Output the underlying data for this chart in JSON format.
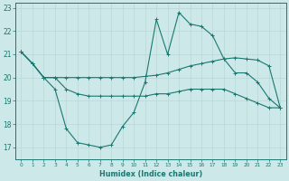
{
  "xlabel": "Humidex (Indice chaleur)",
  "bg_color": "#cde8e8",
  "line_color": "#1a7870",
  "grid_color": "#b8d8d8",
  "xlim": [
    -0.5,
    23.5
  ],
  "ylim": [
    16.5,
    23.2
  ],
  "yticks": [
    17,
    18,
    19,
    20,
    21,
    22,
    23
  ],
  "xtick_labels": [
    "0",
    "1",
    "2",
    "3",
    "4",
    "5",
    "6",
    "7",
    "8",
    "9",
    "10",
    "11",
    "12",
    "13",
    "14",
    "15",
    "16",
    "17",
    "18",
    "19",
    "20",
    "21",
    "22",
    "23"
  ],
  "line1_x": [
    0,
    1,
    2,
    3,
    4,
    5,
    6,
    7,
    8,
    9,
    10,
    11,
    12,
    13,
    14,
    15,
    16,
    17,
    18,
    19,
    20,
    21,
    22,
    23
  ],
  "line1_y": [
    21.1,
    20.6,
    20.0,
    19.5,
    17.8,
    17.2,
    17.1,
    17.0,
    17.1,
    17.9,
    18.5,
    19.8,
    22.5,
    21.0,
    22.8,
    22.3,
    22.2,
    21.8,
    20.8,
    20.2,
    20.2,
    19.8,
    19.1,
    18.7
  ],
  "line2_x": [
    0,
    1,
    2,
    3,
    4,
    5,
    6,
    7,
    8,
    9,
    10,
    11,
    12,
    13,
    14,
    15,
    16,
    17,
    18,
    19,
    20,
    21,
    22,
    23
  ],
  "line2_y": [
    21.1,
    20.6,
    20.0,
    20.0,
    20.0,
    20.0,
    20.0,
    20.0,
    20.0,
    20.0,
    20.0,
    20.05,
    20.1,
    20.2,
    20.35,
    20.5,
    20.6,
    20.7,
    20.8,
    20.85,
    20.8,
    20.75,
    20.5,
    18.7
  ],
  "line3_x": [
    0,
    1,
    2,
    3,
    4,
    5,
    6,
    7,
    8,
    9,
    10,
    11,
    12,
    13,
    14,
    15,
    16,
    17,
    18,
    19,
    20,
    21,
    22,
    23
  ],
  "line3_y": [
    21.1,
    20.6,
    20.0,
    20.0,
    19.5,
    19.3,
    19.2,
    19.2,
    19.2,
    19.2,
    19.2,
    19.2,
    19.3,
    19.3,
    19.4,
    19.5,
    19.5,
    19.5,
    19.5,
    19.3,
    19.1,
    18.9,
    18.7,
    18.7
  ]
}
